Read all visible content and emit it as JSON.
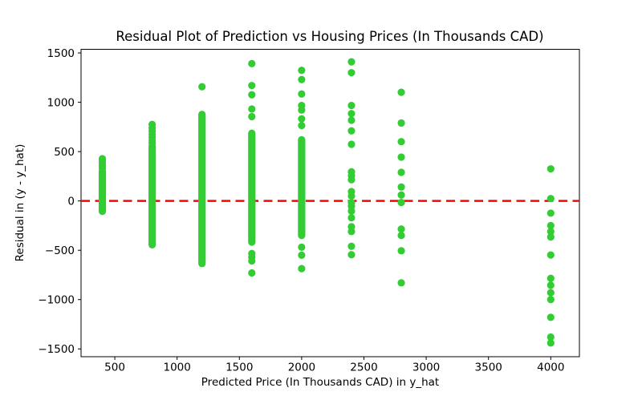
{
  "chart_data": {
    "type": "scatter",
    "title": "Residual Plot of Prediction vs Housing Prices (In Thousands CAD)",
    "xlabel": "Predicted Price (In Thousands CAD) in y_hat",
    "ylabel": "Residual in (y - y_hat)",
    "xlim": [
      229,
      4230
    ],
    "ylim": [
      -1579,
      1537
    ],
    "x_ticks": [
      500,
      1000,
      1500,
      2000,
      2500,
      3000,
      3500,
      4000
    ],
    "y_ticks": [
      -1500,
      -1000,
      -500,
      0,
      500,
      1000,
      1500
    ],
    "grid": false,
    "legend": "none",
    "marker": {
      "shape": "circle",
      "color": "#32cd32",
      "radius_px": 4.6
    },
    "zero_line": {
      "y": 0,
      "color": "#ff0000",
      "style": "dashed"
    },
    "series": [
      {
        "name": "residuals",
        "color": "#32cd32",
        "columns": [
          {
            "x": 400,
            "dense_ranges": [
              [
                -105,
                300
              ]
            ],
            "points": [
              330,
              355,
              380,
              405,
              428
            ]
          },
          {
            "x": 800,
            "dense_ranges": [
              [
                -445,
                555
              ]
            ],
            "points": [
              585,
              615,
              645,
              677,
              710,
              742,
              775
            ]
          },
          {
            "x": 1200,
            "dense_ranges": [
              [
                -635,
                877
              ]
            ],
            "points": [
              1157
            ]
          },
          {
            "x": 1600,
            "dense_ranges": [
              [
                -418,
                686
              ]
            ],
            "points": [
              855,
              932,
              1076,
              1170,
              1392,
              -533,
              -570,
              -608,
              -730
            ]
          },
          {
            "x": 2000,
            "dense_ranges": [
              [
                -350,
                620
              ]
            ],
            "points": [
              764,
              832,
              921,
              967,
              1084,
              1230,
              1324,
              -469,
              -550,
              -686
            ]
          },
          {
            "x": 2400,
            "dense_ranges": [],
            "points": [
              1410,
              1300,
              967,
              885,
              818,
              710,
              574,
              295,
              255,
              215,
              95,
              50,
              -18,
              -53,
              -103,
              -171,
              -262,
              -310,
              -460,
              -545
            ]
          },
          {
            "x": 2800,
            "dense_ranges": [],
            "points": [
              1101,
              790,
              601,
              444,
              290,
              141,
              60,
              -16,
              -285,
              -350,
              -505,
              -830
            ]
          },
          {
            "x": 4000,
            "dense_ranges": [],
            "points": [
              325,
              24,
              -124,
              -250,
              -310,
              -365,
              -548,
              -785,
              -855,
              -930,
              -1000,
              -1180,
              -1380,
              -1440
            ]
          }
        ]
      }
    ],
    "colors": {
      "background": "#ffffff",
      "axis": "#000000",
      "text": "#000000"
    }
  }
}
